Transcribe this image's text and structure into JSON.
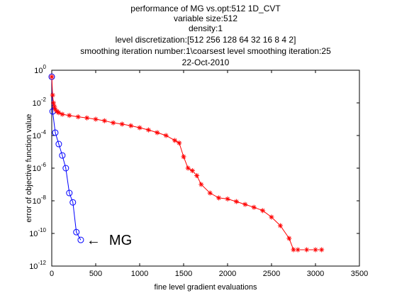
{
  "chart_data": {
    "type": "line",
    "title_lines": [
      "performance of MG vs.opt:512 1D_CVT",
      "variable size:512",
      "density:1",
      "level discretization:[512 256 128 64 32 16 8 4 2]",
      "smoothing iteration number:1\\coarsest level smoothing iteration:25",
      "22-Oct-2010"
    ],
    "xlabel": "fine level gradient evaluations",
    "ylabel": "error of objective function value",
    "xlim": [
      0,
      3500
    ],
    "ylim": [
      1e-12,
      1
    ],
    "yscale": "log",
    "x_ticks": [
      0,
      500,
      1000,
      1500,
      2000,
      2500,
      3000,
      3500
    ],
    "y_tick_exponents": [
      0,
      -2,
      -4,
      -6,
      -8,
      -10,
      -12
    ],
    "grid": false,
    "annotation": {
      "text": "MG",
      "arrow": "←",
      "x": 330,
      "y": 4e-11
    },
    "series": [
      {
        "name": "MG",
        "color": "#0000ff",
        "marker": "circle",
        "x": [
          0,
          10,
          40,
          80,
          120,
          160,
          200,
          240,
          280,
          330
        ],
        "y": [
          0.4,
          0.003,
          0.00015,
          3e-05,
          6e-06,
          1e-06,
          3e-08,
          8e-09,
          1.2e-10,
          4e-11
        ]
      },
      {
        "name": "opt",
        "color": "#ff0000",
        "marker": "star",
        "x": [
          0,
          10,
          20,
          30,
          40,
          60,
          80,
          120,
          200,
          300,
          400,
          500,
          600,
          700,
          800,
          900,
          1000,
          1100,
          1200,
          1300,
          1400,
          1450,
          1500,
          1550,
          1600,
          1650,
          1700,
          1800,
          1900,
          2000,
          2100,
          2200,
          2300,
          2400,
          2500,
          2600,
          2700,
          2750,
          2800,
          2900,
          3000,
          3070
        ],
        "y": [
          0.4,
          0.03,
          0.01,
          0.006,
          0.004,
          0.003,
          0.0025,
          0.002,
          0.0017,
          0.0014,
          0.0012,
          0.001,
          0.0008,
          0.0006,
          0.0005,
          0.0004,
          0.0003,
          0.00022,
          0.00015,
          0.0001,
          5e-05,
          3.5e-05,
          5e-06,
          1e-06,
          7e-07,
          3.5e-07,
          1e-07,
          3e-08,
          1.5e-08,
          1.3e-08,
          9e-09,
          6e-09,
          4e-09,
          2.5e-09,
          1e-09,
          3e-10,
          5e-11,
          1e-11,
          1e-11,
          1e-11,
          1e-11,
          1e-11
        ]
      }
    ]
  }
}
